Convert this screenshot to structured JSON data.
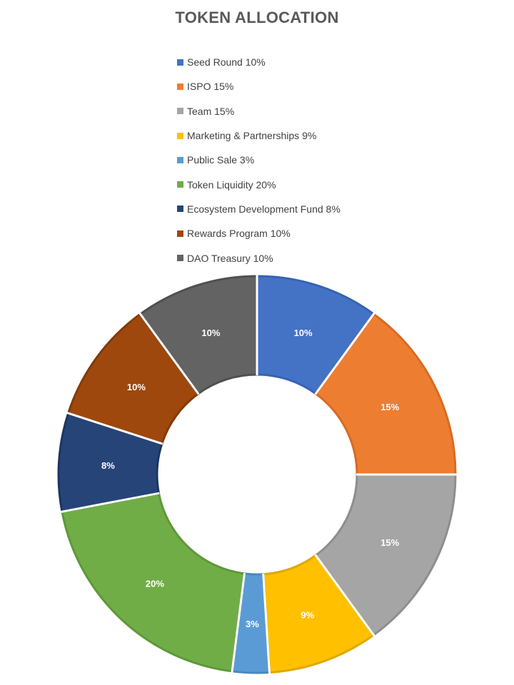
{
  "chart_data": {
    "type": "pie",
    "title": "TOKEN ALLOCATION",
    "legend_position": "top",
    "donut": true,
    "series": [
      {
        "label": "Seed Round 10%",
        "value": 10,
        "data_label": "10%",
        "color": "#4472C4",
        "border": "#3763B5"
      },
      {
        "label": "ISPO 15%",
        "value": 15,
        "data_label": "15%",
        "color": "#ED7D31",
        "border": "#D86A22"
      },
      {
        "label": "Team 15%",
        "value": 15,
        "data_label": "15%",
        "color": "#A5A5A5",
        "border": "#8E8E8E"
      },
      {
        "label": "Marketing & Partnerships 9%",
        "value": 9,
        "data_label": "9%",
        "color": "#FFC000",
        "border": "#E0A800"
      },
      {
        "label": "Public Sale 3%",
        "value": 3,
        "data_label": "3%",
        "color": "#5B9BD5",
        "border": "#4A88C0"
      },
      {
        "label": "Token Liquidity 20%",
        "value": 20,
        "data_label": "20%",
        "color": "#70AD47",
        "border": "#5E983A"
      },
      {
        "label": "Ecosystem Development Fund 8%",
        "value": 8,
        "data_label": "8%",
        "color": "#264478",
        "border": "#1C3560"
      },
      {
        "label": "Rewards Program 10%",
        "value": 10,
        "data_label": "10%",
        "color": "#9E480E",
        "border": "#823A0A"
      },
      {
        "label": "DAO Treasury 10%",
        "value": 10,
        "data_label": "10%",
        "color": "#636363",
        "border": "#505050"
      }
    ]
  }
}
